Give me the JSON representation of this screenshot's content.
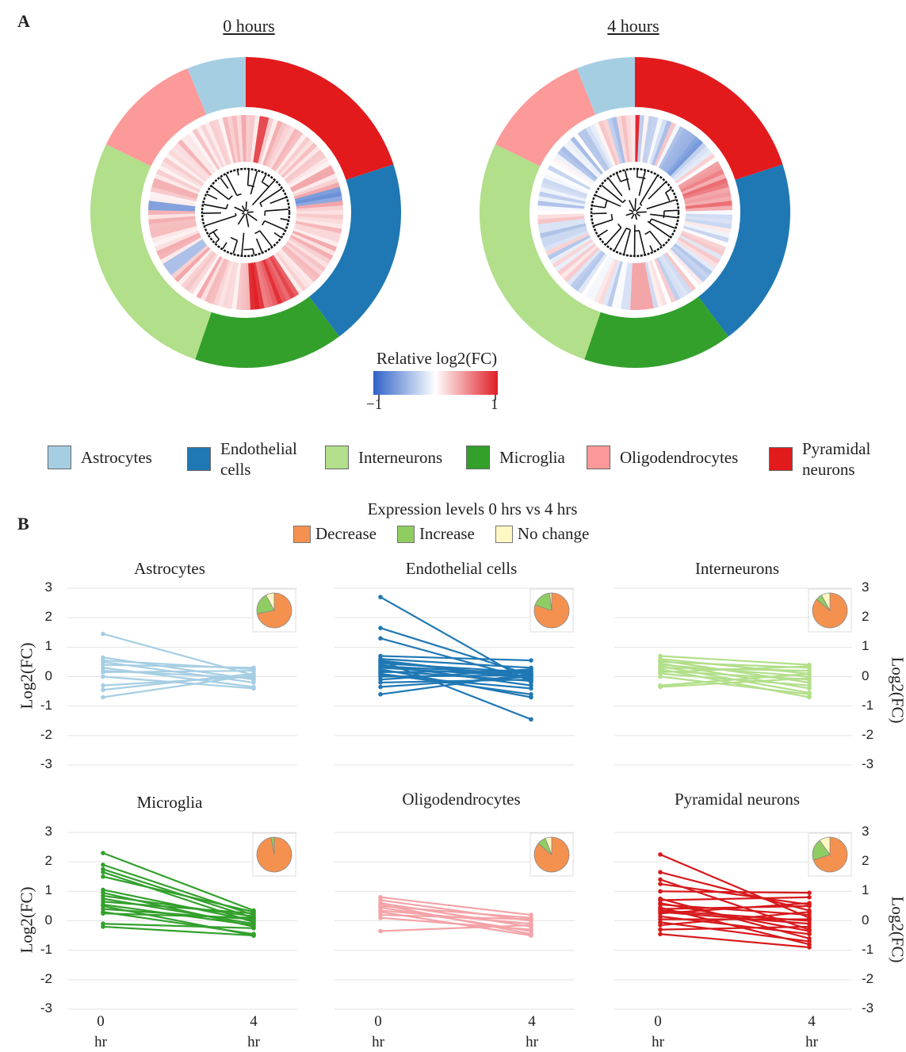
{
  "panel_a": {
    "label": "A",
    "left_title": "0 hours",
    "right_title": "4 hours",
    "colorbar": {
      "title": "Relative log2(FC)",
      "min_label": "−1",
      "max_label": "1"
    },
    "legend": [
      {
        "name": "Astrocytes",
        "lines": [
          "Astrocytes"
        ],
        "color": "#a6cee3"
      },
      {
        "name": "Endothelial cells",
        "lines": [
          "Endothelial",
          "cells"
        ],
        "color": "#1f78b4"
      },
      {
        "name": "Interneurons",
        "lines": [
          "Interneurons"
        ],
        "color": "#b2df8a"
      },
      {
        "name": "Microglia",
        "lines": [
          "Microglia"
        ],
        "color": "#33a02c"
      },
      {
        "name": "Oligodendrocytes",
        "lines": [
          "Oligodendrocytes"
        ],
        "color": "#fb9a99"
      },
      {
        "name": "Pyramidal neurons",
        "lines": [
          "Pyramidal",
          "neurons"
        ],
        "color": "#e31a1c"
      }
    ],
    "rings": [
      {
        "title": "0 hours",
        "sectors": [
          {
            "name": "Astrocytes",
            "start_deg": -22,
            "end_deg": 0
          },
          {
            "name": "Pyramidal neurons",
            "start_deg": 0,
            "end_deg": 72
          },
          {
            "name": "Endothelial cells",
            "start_deg": 72,
            "end_deg": 143
          },
          {
            "name": "Microglia",
            "start_deg": 143,
            "end_deg": 199
          },
          {
            "name": "Interneurons",
            "start_deg": 199,
            "end_deg": 296
          },
          {
            "name": "Oligodendrocytes",
            "start_deg": 296,
            "end_deg": 338
          }
        ]
      },
      {
        "title": "4 hours",
        "sectors": [
          {
            "name": "Astrocytes",
            "start_deg": -22,
            "end_deg": 0
          },
          {
            "name": "Pyramidal neurons",
            "start_deg": 0,
            "end_deg": 72
          },
          {
            "name": "Endothelial cells",
            "start_deg": 72,
            "end_deg": 143
          },
          {
            "name": "Microglia",
            "start_deg": 143,
            "end_deg": 199
          },
          {
            "name": "Interneurons",
            "start_deg": 199,
            "end_deg": 296
          },
          {
            "name": "Oligodendrocytes",
            "start_deg": 296,
            "end_deg": 338
          }
        ]
      }
    ]
  },
  "panel_b": {
    "label": "B",
    "title": "Expression levels 0 hrs vs 4 hrs",
    "legend": [
      {
        "name": "Decrease",
        "color": "#f5914e"
      },
      {
        "name": "Increase",
        "color": "#8fcd62"
      },
      {
        "name": "No change",
        "color": "#fdf8c3"
      }
    ],
    "ylabel": "Log2(FC)",
    "yticks": [
      "3",
      "2",
      "1",
      "0",
      "-1",
      "-2",
      "-3"
    ],
    "xticks": [
      {
        "value": "0",
        "unit": "hr"
      },
      {
        "value": "4",
        "unit": "hr"
      }
    ]
  },
  "chart_data": [
    {
      "type": "line",
      "title": "Astrocytes",
      "color": "#a6cee3",
      "ylim": [
        -3,
        3
      ],
      "x": [
        0,
        4
      ],
      "series": [
        {
          "values": [
            1.45,
            0.05
          ]
        },
        {
          "values": [
            0.65,
            -0.1
          ]
        },
        {
          "values": [
            0.55,
            0.25
          ]
        },
        {
          "values": [
            0.4,
            0.3
          ]
        },
        {
          "values": [
            0.3,
            -0.35
          ]
        },
        {
          "values": [
            0.15,
            0.2
          ]
        },
        {
          "values": [
            0.0,
            -0.4
          ]
        },
        {
          "values": [
            -0.3,
            0.0
          ]
        },
        {
          "values": [
            -0.45,
            0.1
          ]
        },
        {
          "values": [
            -0.7,
            0.05
          ]
        },
        {
          "values": [
            0.5,
            -0.2
          ]
        },
        {
          "values": [
            0.2,
            -0.05
          ]
        }
      ],
      "pie": [
        {
          "name": "Decrease",
          "value": 0.72
        },
        {
          "name": "Increase",
          "value": 0.2
        },
        {
          "name": "No change",
          "value": 0.08
        }
      ]
    },
    {
      "type": "line",
      "title": "Endothelial cells",
      "color": "#1f78b4",
      "ylim": [
        -3,
        3
      ],
      "x": [
        0,
        4
      ],
      "series": [
        {
          "values": [
            2.7,
            -0.2
          ]
        },
        {
          "values": [
            1.65,
            0.05
          ]
        },
        {
          "values": [
            1.3,
            -0.1
          ]
        },
        {
          "values": [
            0.7,
            0.55
          ]
        },
        {
          "values": [
            0.6,
            0.3
          ]
        },
        {
          "values": [
            0.55,
            -0.05
          ]
        },
        {
          "values": [
            0.45,
            0.15
          ]
        },
        {
          "values": [
            0.4,
            -0.3
          ]
        },
        {
          "values": [
            0.35,
            0.1
          ]
        },
        {
          "values": [
            0.3,
            0.0
          ]
        },
        {
          "values": [
            0.2,
            -0.15
          ]
        },
        {
          "values": [
            0.15,
            0.2
          ]
        },
        {
          "values": [
            0.05,
            -0.4
          ]
        },
        {
          "values": [
            0.0,
            0.05
          ]
        },
        {
          "values": [
            -0.1,
            0.25
          ]
        },
        {
          "values": [
            -0.2,
            -0.1
          ]
        },
        {
          "values": [
            -0.35,
            0.0
          ]
        },
        {
          "values": [
            -0.6,
            0.1
          ]
        },
        {
          "values": [
            0.55,
            -1.45
          ]
        },
        {
          "values": [
            0.25,
            -0.7
          ]
        },
        {
          "values": [
            0.1,
            -0.6
          ]
        },
        {
          "values": [
            0.5,
            0.0
          ]
        }
      ],
      "pie": [
        {
          "name": "Decrease",
          "value": 0.8
        },
        {
          "name": "Increase",
          "value": 0.18
        },
        {
          "name": "No change",
          "value": 0.02
        }
      ]
    },
    {
      "type": "line",
      "title": "Interneurons",
      "color": "#b2df8a",
      "ylim": [
        -3,
        3
      ],
      "x": [
        0,
        4
      ],
      "series": [
        {
          "values": [
            0.7,
            0.4
          ]
        },
        {
          "values": [
            0.6,
            0.1
          ]
        },
        {
          "values": [
            0.55,
            -0.2
          ]
        },
        {
          "values": [
            0.5,
            0.3
          ]
        },
        {
          "values": [
            0.45,
            -0.4
          ]
        },
        {
          "values": [
            0.4,
            0.0
          ]
        },
        {
          "values": [
            0.35,
            -0.55
          ]
        },
        {
          "values": [
            0.3,
            0.2
          ]
        },
        {
          "values": [
            0.2,
            -0.1
          ]
        },
        {
          "values": [
            0.1,
            -0.3
          ]
        },
        {
          "values": [
            0.0,
            -0.6
          ]
        },
        {
          "values": [
            -0.3,
            0.1
          ]
        },
        {
          "values": [
            -0.35,
            -0.05
          ]
        },
        {
          "values": [
            0.25,
            -0.7
          ]
        },
        {
          "values": [
            0.15,
            0.35
          ]
        }
      ],
      "pie": [
        {
          "name": "Decrease",
          "value": 0.86
        },
        {
          "name": "Increase",
          "value": 0.06
        },
        {
          "name": "No change",
          "value": 0.08
        }
      ]
    },
    {
      "type": "line",
      "title": "Microglia",
      "color": "#33a02c",
      "ylim": [
        -3,
        3
      ],
      "x": [
        0,
        4
      ],
      "series": [
        {
          "values": [
            2.3,
            0.35
          ]
        },
        {
          "values": [
            1.9,
            0.2
          ]
        },
        {
          "values": [
            1.75,
            0.1
          ]
        },
        {
          "values": [
            1.65,
            -0.05
          ]
        },
        {
          "values": [
            1.5,
            0.3
          ]
        },
        {
          "values": [
            1.05,
            0.0
          ]
        },
        {
          "values": [
            0.95,
            -0.2
          ]
        },
        {
          "values": [
            0.85,
            0.15
          ]
        },
        {
          "values": [
            0.75,
            -0.1
          ]
        },
        {
          "values": [
            0.65,
            0.25
          ]
        },
        {
          "values": [
            0.5,
            -0.5
          ]
        },
        {
          "values": [
            0.4,
            0.05
          ]
        },
        {
          "values": [
            0.3,
            -0.45
          ]
        },
        {
          "values": [
            0.25,
            0.1
          ]
        },
        {
          "values": [
            -0.1,
            -0.25
          ]
        },
        {
          "values": [
            -0.2,
            -0.5
          ]
        },
        {
          "values": [
            0.55,
            -0.15
          ]
        }
      ],
      "pie": [
        {
          "name": "Decrease",
          "value": 0.97
        },
        {
          "name": "Increase",
          "value": 0.03
        },
        {
          "name": "No change",
          "value": 0.0
        }
      ]
    },
    {
      "type": "line",
      "title": "Oligodendrocytes",
      "color": "#f4a3a8",
      "ylim": [
        -3,
        3
      ],
      "x": [
        0,
        4
      ],
      "series": [
        {
          "values": [
            0.8,
            0.2
          ]
        },
        {
          "values": [
            0.7,
            0.0
          ]
        },
        {
          "values": [
            0.6,
            -0.2
          ]
        },
        {
          "values": [
            0.5,
            0.1
          ]
        },
        {
          "values": [
            0.45,
            -0.35
          ]
        },
        {
          "values": [
            0.35,
            -0.1
          ]
        },
        {
          "values": [
            0.3,
            -0.5
          ]
        },
        {
          "values": [
            0.2,
            0.05
          ]
        },
        {
          "values": [
            0.1,
            -0.3
          ]
        },
        {
          "values": [
            -0.35,
            -0.15
          ]
        },
        {
          "values": [
            0.55,
            -0.45
          ]
        }
      ],
      "pie": [
        {
          "name": "Decrease",
          "value": 0.86
        },
        {
          "name": "Increase",
          "value": 0.08
        },
        {
          "name": "No change",
          "value": 0.06
        }
      ]
    },
    {
      "type": "line",
      "title": "Pyramidal neurons",
      "color": "#d7191c",
      "ylim": [
        -3,
        3
      ],
      "x": [
        0,
        4
      ],
      "series": [
        {
          "values": [
            2.25,
            0.1
          ]
        },
        {
          "values": [
            1.65,
            0.35
          ]
        },
        {
          "values": [
            1.4,
            -0.3
          ]
        },
        {
          "values": [
            1.25,
            0.55
          ]
        },
        {
          "values": [
            1.0,
            0.95
          ]
        },
        {
          "values": [
            0.75,
            -0.6
          ]
        },
        {
          "values": [
            0.7,
            0.8
          ]
        },
        {
          "values": [
            0.55,
            0.2
          ]
        },
        {
          "values": [
            0.45,
            -0.8
          ]
        },
        {
          "values": [
            0.4,
            0.5
          ]
        },
        {
          "values": [
            0.3,
            -0.1
          ]
        },
        {
          "values": [
            0.25,
            0.6
          ]
        },
        {
          "values": [
            0.15,
            -0.45
          ]
        },
        {
          "values": [
            0.05,
            0.05
          ]
        },
        {
          "values": [
            -0.05,
            -0.7
          ]
        },
        {
          "values": [
            -0.15,
            0.3
          ]
        },
        {
          "values": [
            -0.3,
            -0.2
          ]
        },
        {
          "values": [
            -0.45,
            -0.9
          ]
        },
        {
          "values": [
            0.35,
            0.0
          ]
        },
        {
          "values": [
            0.6,
            -0.35
          ]
        }
      ],
      "pie": [
        {
          "name": "Decrease",
          "value": 0.7
        },
        {
          "name": "Increase",
          "value": 0.2
        },
        {
          "name": "No change",
          "value": 0.1
        }
      ]
    }
  ]
}
